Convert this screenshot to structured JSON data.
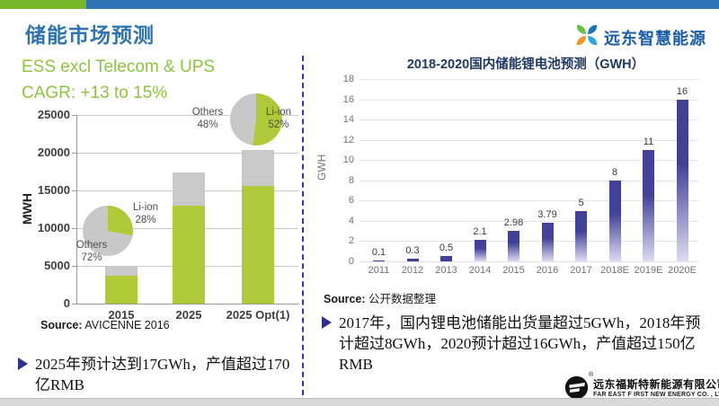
{
  "header": {
    "title": "储能市场预测",
    "brand": "远东智慧能源",
    "bar_green": "#76B82A",
    "bar_blue": "#2E75B6",
    "title_color": "#2E74B5"
  },
  "left": {
    "heading1": "ESS excl Telecom & UPS",
    "heading2": "CAGR: +13 to 15%",
    "heading_color": "#8DC63F",
    "bullet": "2025年预计达到17GWh，产值超过170亿RMB"
  },
  "right": {
    "bullet": "2017年，国内锂电池储能出货量超过5GWh，2018年预计超过8GWh，2020预计超过16GWh，产值超过150亿RMB"
  },
  "footer": {
    "company_cn": "远东福斯特新能源有限公司",
    "company_en": "FAR EAST F IRST NEW ENERGY CO. , LTD"
  },
  "chart_data": [
    {
      "type": "bar",
      "stacked": true,
      "title": "ESS excl Telecom & UPS CAGR: +13 to 15%",
      "ylabel": "MWH",
      "xlabel": "",
      "categories": [
        "2015",
        "2025",
        "2025 Opt(1)"
      ],
      "series": [
        {
          "name": "Li-ion",
          "color": "#AFC937",
          "values": [
            3700,
            13000,
            15600
          ]
        },
        {
          "name": "Others",
          "color": "#C9C9C9",
          "values": [
            1200,
            4400,
            4700
          ]
        }
      ],
      "ylim": [
        0,
        25000
      ],
      "ytick_step": 5000,
      "grid": true,
      "legend": "none",
      "source_label": "Source:",
      "source_text": "AVICENNE  2016",
      "pies": [
        {
          "at": "2015",
          "slices": [
            {
              "label": "Li-ion",
              "pct": 28,
              "color": "#AFC937"
            },
            {
              "label": "Others",
              "pct": 72,
              "color": "#C8C8C8"
            }
          ]
        },
        {
          "at": "2025 Opt(1)",
          "slices": [
            {
              "label": "Li-ion",
              "pct": 52,
              "color": "#AFC937"
            },
            {
              "label": "Others",
              "pct": 48,
              "color": "#C8C8C8"
            }
          ]
        }
      ]
    },
    {
      "type": "bar",
      "stacked": false,
      "title": "2018-2020国内储能锂电池预测（GWH）",
      "ylabel": "GWH",
      "xlabel": "",
      "categories": [
        "2011",
        "2012",
        "2013",
        "2014",
        "2015",
        "2016",
        "2017",
        "2018E",
        "2019E",
        "2020E"
      ],
      "values": [
        0.1,
        0.3,
        0.5,
        2.1,
        2.98,
        3.79,
        5,
        8,
        11,
        16
      ],
      "ylim": [
        0,
        18
      ],
      "ytick_step": 2,
      "grid": true,
      "legend": "none",
      "bar_color_top": "#41419A",
      "bar_color_bottom": "#DCDCF1",
      "source_label": "Source:",
      "source_text": "公开数据整理"
    }
  ]
}
